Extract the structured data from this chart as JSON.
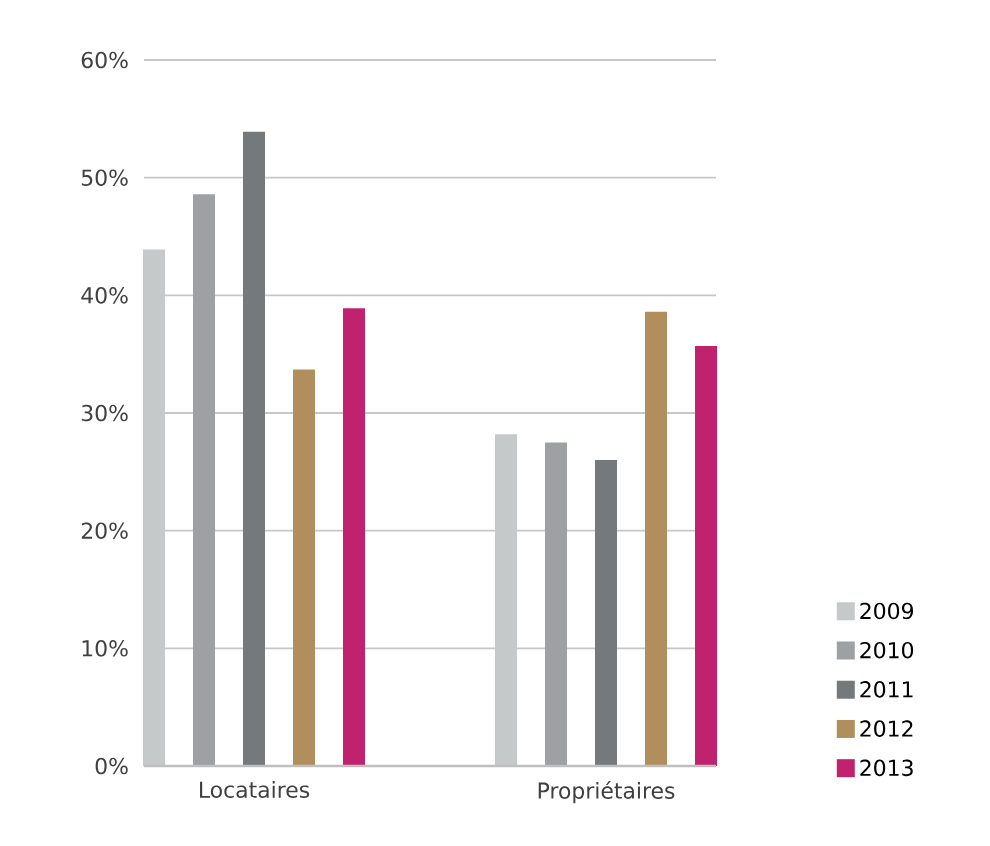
{
  "chart_data": {
    "type": "bar",
    "categories": [
      "Locataires",
      "Propriétaires"
    ],
    "series": [
      {
        "name": "2009",
        "color": "#c6c9c9",
        "values": [
          43.9,
          28.2
        ]
      },
      {
        "name": "2010",
        "color": "#9da1a4",
        "values": [
          48.6,
          27.5
        ]
      },
      {
        "name": "2011",
        "color": "#75797c",
        "values": [
          53.9,
          26
        ]
      },
      {
        "name": "2012",
        "color": "#b08f5c",
        "values": [
          33.7,
          38.6
        ]
      },
      {
        "name": "2013",
        "color": "#c0226e",
        "values": [
          38.9,
          35.7
        ]
      }
    ],
    "ylim": [
      0,
      60
    ],
    "yticks": [
      {
        "value": 0,
        "label": "0%"
      },
      {
        "value": 10,
        "label": "10%"
      },
      {
        "value": 20,
        "label": "20%"
      },
      {
        "value": 30,
        "label": "30%"
      },
      {
        "value": 40,
        "label": "40%"
      },
      {
        "value": 50,
        "label": "50%"
      },
      {
        "value": 60,
        "label": "60%"
      }
    ],
    "grid": "y",
    "legend": "right"
  }
}
